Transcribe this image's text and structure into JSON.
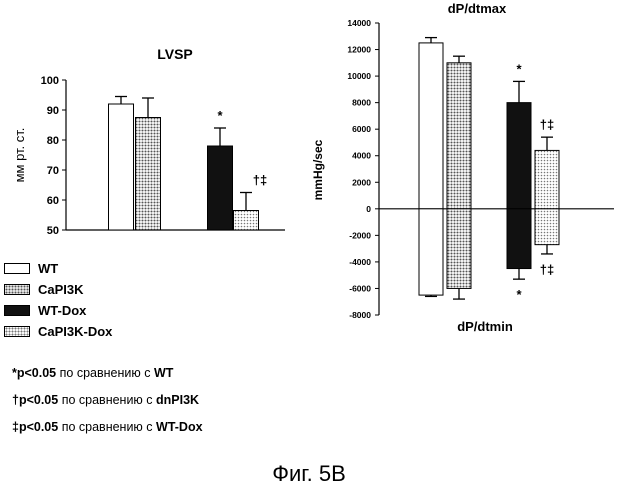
{
  "legend": [
    "WT",
    "CaPI3K",
    "WT-Dox",
    "CaPI3K-Dox"
  ],
  "footnotes": [
    {
      "mark": "*p<0.05",
      "text": "по сравнению с",
      "ref": "WT"
    },
    {
      "mark": "†p<0.05",
      "text": "по сравнению с",
      "ref": "dnPI3K"
    },
    {
      "mark": "‡p<0.05",
      "text": "по сравнению с",
      "ref": "WT-Dox"
    }
  ],
  "caption": "Фиг. 5В",
  "chart_data": [
    {
      "type": "bar",
      "title": "LVSP",
      "ylabel": "мм рт. ст.",
      "xlabel": "",
      "categories": [
        "WT",
        "CaPI3K",
        "WT-Dox",
        "CaPI3K-Dox"
      ],
      "values": [
        92,
        87.5,
        78,
        56.5
      ],
      "errors": [
        2.5,
        6.5,
        6,
        6
      ],
      "annotations": [
        "",
        "",
        "*",
        "†‡"
      ],
      "ylim": [
        50,
        100
      ],
      "yticks": [
        50,
        60,
        70,
        80,
        90,
        100
      ],
      "colors": {
        "WT": "#ffffff",
        "CaPI3K": "#9a9a9a",
        "WT-Dox": "#111111",
        "CaPI3K-Dox": "#bdbdbd"
      }
    },
    {
      "type": "bar",
      "title": "dP/dtmax",
      "bottom_title": "dP/dtmin",
      "ylabel": "mmHg/sec",
      "xlabel": "",
      "categories": [
        "WT",
        "CaPI3K",
        "WT-Dox",
        "CaPI3K-Dox"
      ],
      "series": [
        {
          "values": [
            12500,
            11000,
            8000,
            4400
          ],
          "errors": [
            400,
            500,
            1600,
            1000
          ],
          "annotations": [
            "",
            "",
            "*",
            "†‡"
          ]
        },
        {
          "values": [
            -6500,
            -6000,
            -4500,
            -2700
          ],
          "errors": [
            100,
            800,
            800,
            700
          ],
          "annotations": [
            "",
            "",
            "*",
            "†‡"
          ]
        }
      ],
      "ylim": [
        -8000,
        14000
      ],
      "yticks": [
        -8000,
        -6000,
        -4000,
        -2000,
        0,
        2000,
        4000,
        6000,
        8000,
        10000,
        12000,
        14000
      ],
      "colors": {
        "WT": "#ffffff",
        "CaPI3K": "#9a9a9a",
        "WT-Dox": "#111111",
        "CaPI3K-Dox": "#bdbdbd"
      }
    }
  ]
}
